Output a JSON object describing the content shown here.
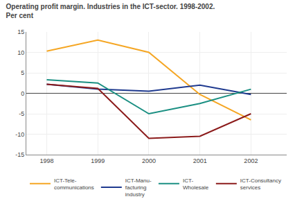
{
  "chart_data": {
    "type": "line",
    "title": "Operating profit margin. Industries in the ICT-sector. 1998-2002.",
    "subtitle": "Per cent",
    "x": [
      1998,
      1999,
      2000,
      2001,
      2002
    ],
    "series": [
      {
        "name": "ICT-Tele-\ncommunications",
        "color": "#F5A623",
        "values": [
          10.3,
          13.0,
          10.0,
          -0.3,
          -6.5
        ]
      },
      {
        "name": "ICT-Manu-\nfacturing\nindustry",
        "color": "#1F3A8F",
        "values": [
          2.2,
          1.0,
          0.5,
          2.0,
          -0.3
        ]
      },
      {
        "name": "ICT-\nWholesale",
        "color": "#1A8F82",
        "values": [
          3.3,
          2.5,
          -5.0,
          -2.5,
          1.0
        ]
      },
      {
        "name": "ICT-Consultancy\nservices",
        "color": "#8B1A1A",
        "values": [
          2.2,
          1.2,
          -11.0,
          -10.5,
          -5.0
        ]
      }
    ],
    "xlim": [
      1997.6,
      2002.7
    ],
    "xticks": [
      1998,
      1999,
      2000,
      2001,
      2002
    ],
    "ylim": [
      -15,
      15
    ],
    "yticks": [
      -15,
      -10,
      -5,
      0,
      5,
      10,
      15
    ],
    "grid": true,
    "legend": "bottom"
  }
}
